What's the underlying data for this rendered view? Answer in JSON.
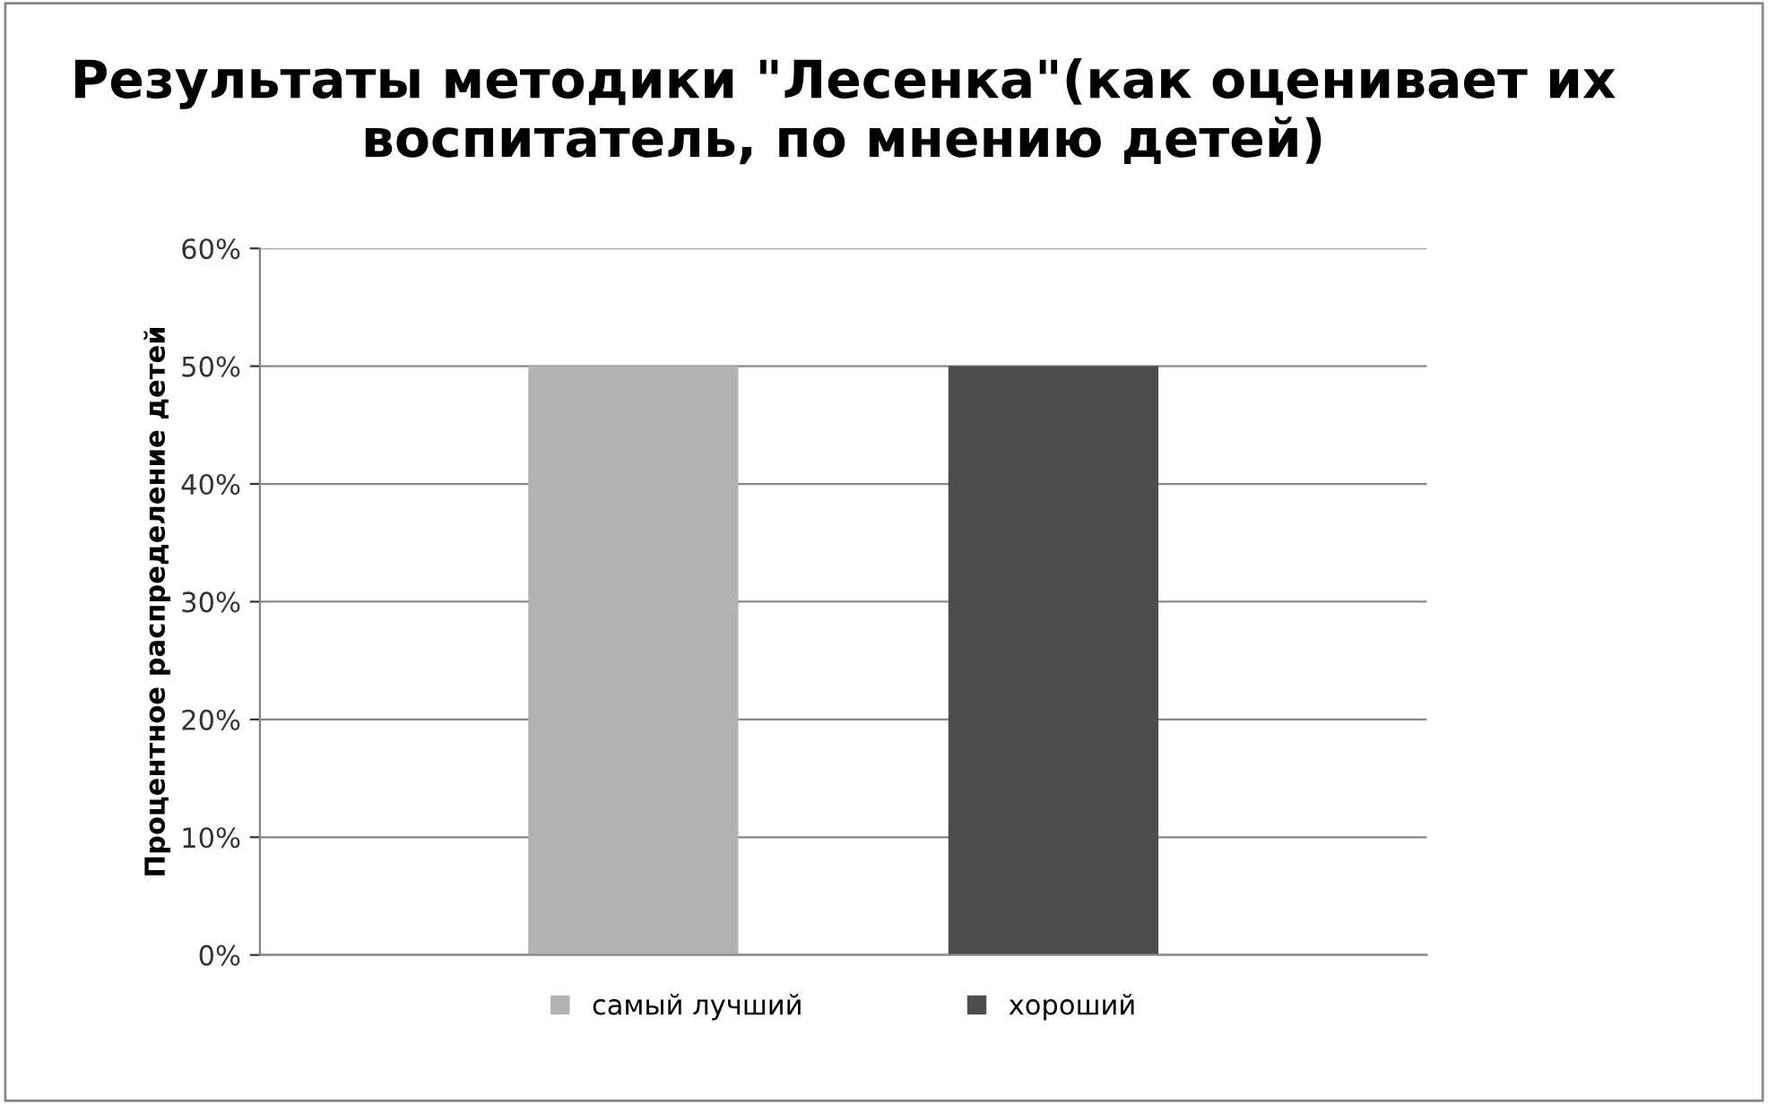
{
  "chart_data": {
    "type": "bar",
    "title": "Результаты методики \"Лесенка\"(как оценивает их воспитатель, по мнению детей)",
    "ylabel": "Процентное распределение детей",
    "categories": [
      null
    ],
    "series": [
      {
        "name": "самый лучший",
        "color": "#b2b2b2",
        "values": [
          50
        ]
      },
      {
        "name": "хороший",
        "color": "#4d4d4d",
        "values": [
          50
        ]
      }
    ],
    "ylim": [
      0,
      60
    ],
    "yticks": [
      {
        "value": 0,
        "label": "0%"
      },
      {
        "value": 10,
        "label": "10%"
      },
      {
        "value": 20,
        "label": "20%"
      },
      {
        "value": 30,
        "label": "30%"
      },
      {
        "value": 40,
        "label": "40%"
      },
      {
        "value": 50,
        "label": "50%"
      },
      {
        "value": 60,
        "label": "60%"
      }
    ],
    "grid": "y",
    "legend": "bottom"
  }
}
